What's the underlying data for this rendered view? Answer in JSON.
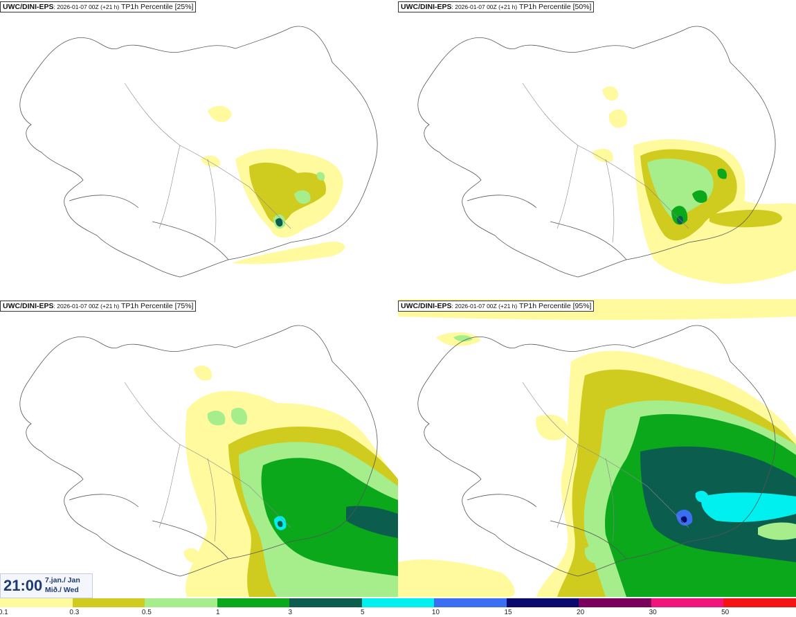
{
  "panels": [
    {
      "model": "UWC/DINI-EPS",
      "run": ": 2026-01-07 00Z (+21 h)",
      "label": "TP1h Percentile [25%]"
    },
    {
      "model": "UWC/DINI-EPS",
      "run": ": 2026-01-07 00Z (+21 h)",
      "label": "TP1h Percentile [50%]"
    },
    {
      "model": "UWC/DINI-EPS",
      "run": ": 2026-01-07 00Z (+21 h)",
      "label": "TP1h Percentile [75%]"
    },
    {
      "model": "UWC/DINI-EPS",
      "run": ": 2026-01-07 00Z (+21 h)",
      "label": "TP1h Percentile [95%]"
    }
  ],
  "time": {
    "clock": "21:00",
    "date": "7.jan./ Jan",
    "day": "Mið./ Wed"
  },
  "legend": {
    "ticks": [
      "0.1",
      "0.3",
      "0.5",
      "1",
      "3",
      "5",
      "10",
      "15",
      "20",
      "30",
      "50"
    ],
    "colors": [
      "#fffa9e",
      "#cfcb1f",
      "#a6ee8c",
      "#0aa81a",
      "#0b5e4e",
      "#00f0f0",
      "#3a6ff2",
      "#0a0a6e",
      "#7a005e",
      "#f0157a",
      "#f51414"
    ]
  }
}
